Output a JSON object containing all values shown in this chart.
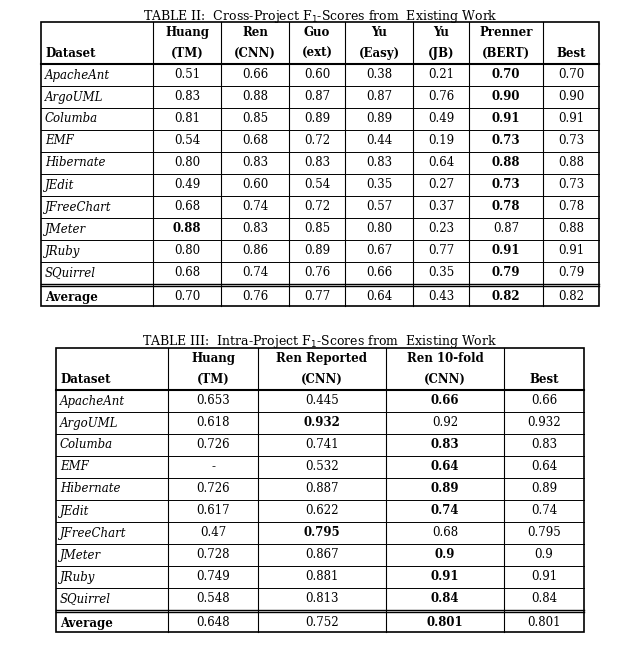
{
  "table2_title": "TABLE II:  Cross-Project F$_1$-Scores from  Existing Work",
  "table2_col_top": [
    "",
    "Huang",
    "Ren",
    "Guo",
    "Yu",
    "Yu",
    "Prenner",
    ""
  ],
  "table2_col_bot": [
    "Dataset",
    "(TM)",
    "(CNN)",
    "(ext)",
    "(Easy)",
    "(JB)",
    "(BERT)",
    "Best"
  ],
  "table2_rows": [
    [
      "ApacheAnt",
      "0.51",
      "0.66",
      "0.60",
      "0.38",
      "0.21",
      "0.70",
      "0.70"
    ],
    [
      "ArgoUML",
      "0.83",
      "0.88",
      "0.87",
      "0.87",
      "0.76",
      "0.90",
      "0.90"
    ],
    [
      "Columba",
      "0.81",
      "0.85",
      "0.89",
      "0.89",
      "0.49",
      "0.91",
      "0.91"
    ],
    [
      "EMF",
      "0.54",
      "0.68",
      "0.72",
      "0.44",
      "0.19",
      "0.73",
      "0.73"
    ],
    [
      "Hibernate",
      "0.80",
      "0.83",
      "0.83",
      "0.83",
      "0.64",
      "0.88",
      "0.88"
    ],
    [
      "JEdit",
      "0.49",
      "0.60",
      "0.54",
      "0.35",
      "0.27",
      "0.73",
      "0.73"
    ],
    [
      "JFreeChart",
      "0.68",
      "0.74",
      "0.72",
      "0.57",
      "0.37",
      "0.78",
      "0.78"
    ],
    [
      "JMeter",
      "0.88",
      "0.83",
      "0.85",
      "0.80",
      "0.23",
      "0.87",
      "0.88"
    ],
    [
      "JRuby",
      "0.80",
      "0.86",
      "0.89",
      "0.67",
      "0.77",
      "0.91",
      "0.91"
    ],
    [
      "SQuirrel",
      "0.68",
      "0.74",
      "0.76",
      "0.66",
      "0.35",
      "0.79",
      "0.79"
    ]
  ],
  "table2_avg": [
    "Average",
    "0.70",
    "0.76",
    "0.77",
    "0.64",
    "0.43",
    "0.82",
    "0.82"
  ],
  "table2_bold": {
    "0": [
      6
    ],
    "1": [
      6
    ],
    "2": [
      6
    ],
    "3": [
      6
    ],
    "4": [
      6
    ],
    "5": [
      6
    ],
    "6": [
      6
    ],
    "7": [
      1
    ],
    "8": [
      6
    ],
    "9": [
      6
    ],
    "avg": [
      6
    ]
  },
  "table3_title": "TABLE III:  Intra-Project F$_1$-Scores from  Existing Work",
  "table3_col_top": [
    "",
    "Huang",
    "Ren Reported",
    "Ren 10-fold",
    ""
  ],
  "table3_col_bot": [
    "Dataset",
    "(TM)",
    "(CNN)",
    "(CNN)",
    "Best"
  ],
  "table3_rows": [
    [
      "ApacheAnt",
      "0.653",
      "0.445",
      "0.66",
      "0.66"
    ],
    [
      "ArgoUML",
      "0.618",
      "0.932",
      "0.92",
      "0.932"
    ],
    [
      "Columba",
      "0.726",
      "0.741",
      "0.83",
      "0.83"
    ],
    [
      "EMF",
      "-",
      "0.532",
      "0.64",
      "0.64"
    ],
    [
      "Hibernate",
      "0.726",
      "0.887",
      "0.89",
      "0.89"
    ],
    [
      "JEdit",
      "0.617",
      "0.622",
      "0.74",
      "0.74"
    ],
    [
      "JFreeChart",
      "0.47",
      "0.795",
      "0.68",
      "0.795"
    ],
    [
      "JMeter",
      "0.728",
      "0.867",
      "0.9",
      "0.9"
    ],
    [
      "JRuby",
      "0.749",
      "0.881",
      "0.91",
      "0.91"
    ],
    [
      "SQuirrel",
      "0.548",
      "0.813",
      "0.84",
      "0.84"
    ]
  ],
  "table3_avg": [
    "Average",
    "0.648",
    "0.752",
    "0.801",
    "0.801"
  ],
  "table3_bold": {
    "0": [
      3
    ],
    "1": [
      2
    ],
    "2": [
      3
    ],
    "3": [
      3
    ],
    "4": [
      3
    ],
    "5": [
      3
    ],
    "6": [
      2
    ],
    "7": [
      3
    ],
    "8": [
      3
    ],
    "9": [
      3
    ],
    "avg": [
      3
    ]
  }
}
